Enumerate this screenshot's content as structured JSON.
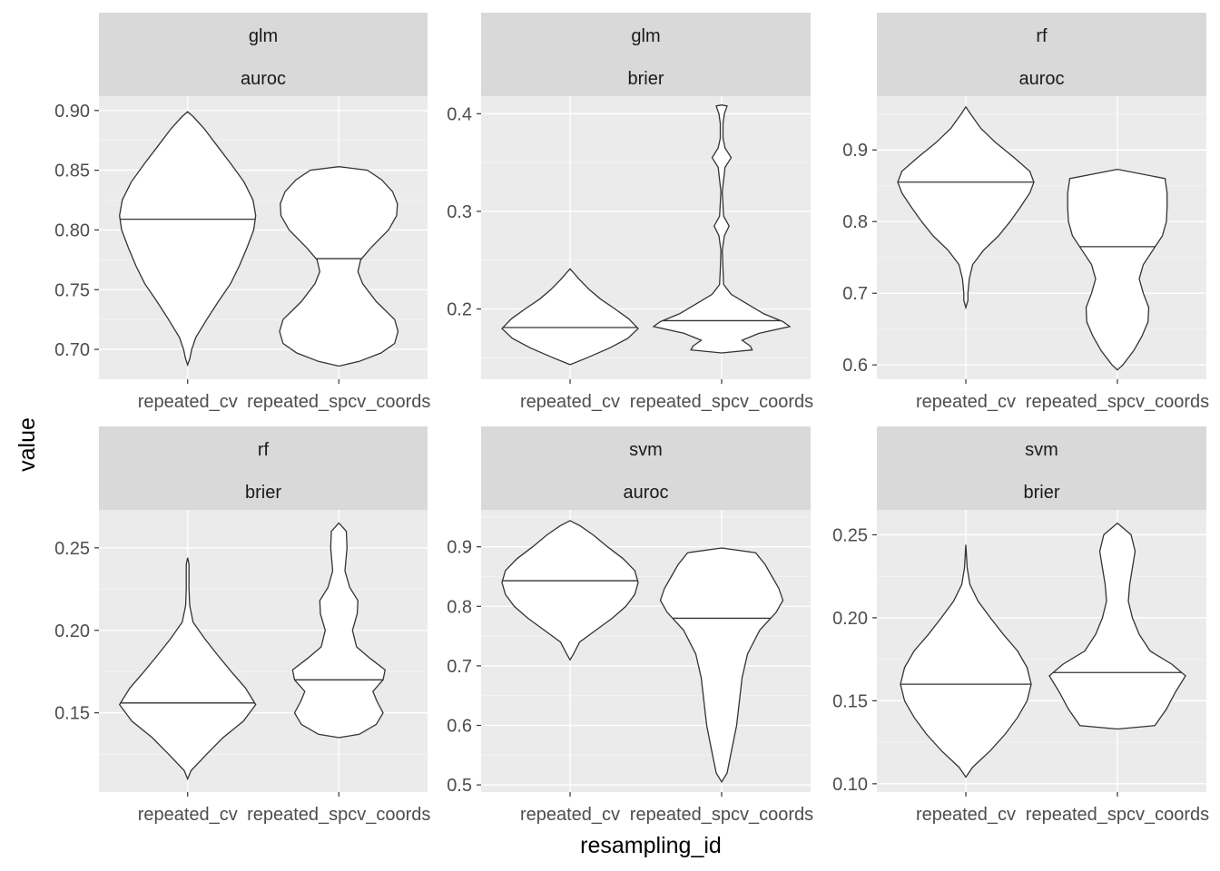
{
  "chart_data": {
    "type": "violin",
    "xlabel": "resampling_id",
    "ylabel": "value",
    "categories": [
      "repeated_cv",
      "repeated_spcv_coords"
    ],
    "grid": true,
    "facets": [
      {
        "learner": "glm",
        "measure": "auroc",
        "ylim": [
          0.675,
          0.912
        ],
        "yticks": [
          0.7,
          0.75,
          0.8,
          0.85,
          0.9
        ],
        "yticklabels": [
          "0.70",
          "0.75",
          "0.80",
          "0.85",
          "0.90"
        ],
        "violins": [
          {
            "category": "repeated_cv",
            "median": 0.809,
            "profile": [
              [
                0.687,
                0.0
              ],
              [
                0.692,
                0.03
              ],
              [
                0.7,
                0.06
              ],
              [
                0.71,
                0.12
              ],
              [
                0.725,
                0.28
              ],
              [
                0.74,
                0.45
              ],
              [
                0.755,
                0.63
              ],
              [
                0.77,
                0.76
              ],
              [
                0.785,
                0.87
              ],
              [
                0.8,
                0.97
              ],
              [
                0.812,
                1.0
              ],
              [
                0.825,
                0.96
              ],
              [
                0.84,
                0.83
              ],
              [
                0.855,
                0.64
              ],
              [
                0.87,
                0.44
              ],
              [
                0.885,
                0.24
              ],
              [
                0.895,
                0.08
              ],
              [
                0.899,
                0.0
              ]
            ]
          },
          {
            "category": "repeated_spcv_coords",
            "median": 0.776,
            "profile": [
              [
                0.686,
                0.0
              ],
              [
                0.69,
                0.3
              ],
              [
                0.697,
                0.62
              ],
              [
                0.705,
                0.82
              ],
              [
                0.715,
                0.87
              ],
              [
                0.725,
                0.82
              ],
              [
                0.74,
                0.55
              ],
              [
                0.755,
                0.35
              ],
              [
                0.765,
                0.28
              ],
              [
                0.775,
                0.32
              ],
              [
                0.785,
                0.47
              ],
              [
                0.8,
                0.73
              ],
              [
                0.812,
                0.85
              ],
              [
                0.822,
                0.86
              ],
              [
                0.832,
                0.79
              ],
              [
                0.842,
                0.63
              ],
              [
                0.85,
                0.42
              ],
              [
                0.853,
                0.0
              ]
            ]
          }
        ]
      },
      {
        "learner": "glm",
        "measure": "brier",
        "ylim": [
          0.128,
          0.418
        ],
        "yticks": [
          0.2,
          0.3,
          0.4
        ],
        "yticklabels": [
          "0.2",
          "0.3",
          "0.4"
        ],
        "violins": [
          {
            "category": "repeated_cv",
            "median": 0.181,
            "profile": [
              [
                0.143,
                0.0
              ],
              [
                0.15,
                0.25
              ],
              [
                0.16,
                0.58
              ],
              [
                0.17,
                0.85
              ],
              [
                0.18,
                1.0
              ],
              [
                0.19,
                0.86
              ],
              [
                0.2,
                0.66
              ],
              [
                0.21,
                0.45
              ],
              [
                0.22,
                0.28
              ],
              [
                0.23,
                0.14
              ],
              [
                0.238,
                0.04
              ],
              [
                0.241,
                0.0
              ]
            ]
          },
          {
            "category": "repeated_spcv_coords",
            "median": 0.188,
            "profile": [
              [
                0.155,
                0.0
              ],
              [
                0.158,
                0.45
              ],
              [
                0.162,
                0.42
              ],
              [
                0.168,
                0.3
              ],
              [
                0.175,
                0.55
              ],
              [
                0.182,
                1.0
              ],
              [
                0.187,
                0.9
              ],
              [
                0.195,
                0.62
              ],
              [
                0.205,
                0.38
              ],
              [
                0.215,
                0.14
              ],
              [
                0.225,
                0.03
              ],
              [
                0.24,
                0.02
              ],
              [
                0.26,
                0.01
              ],
              [
                0.275,
                0.04
              ],
              [
                0.285,
                0.11
              ],
              [
                0.295,
                0.03
              ],
              [
                0.32,
                0.01
              ],
              [
                0.345,
                0.05
              ],
              [
                0.355,
                0.14
              ],
              [
                0.365,
                0.05
              ],
              [
                0.375,
                0.02
              ],
              [
                0.39,
                0.02
              ],
              [
                0.4,
                0.04
              ],
              [
                0.408,
                0.08
              ],
              [
                0.409,
                0.0
              ]
            ]
          }
        ]
      },
      {
        "learner": "rf",
        "measure": "auroc",
        "ylim": [
          0.58,
          0.975
        ],
        "yticks": [
          0.6,
          0.7,
          0.8,
          0.9
        ],
        "yticklabels": [
          "0.6",
          "0.7",
          "0.8",
          "0.9"
        ],
        "violins": [
          {
            "category": "repeated_cv",
            "median": 0.855,
            "profile": [
              [
                0.68,
                0.0
              ],
              [
                0.69,
                0.03
              ],
              [
                0.7,
                0.03
              ],
              [
                0.72,
                0.05
              ],
              [
                0.74,
                0.1
              ],
              [
                0.76,
                0.26
              ],
              [
                0.78,
                0.48
              ],
              [
                0.8,
                0.65
              ],
              [
                0.82,
                0.8
              ],
              [
                0.84,
                0.94
              ],
              [
                0.855,
                1.0
              ],
              [
                0.87,
                0.94
              ],
              [
                0.89,
                0.7
              ],
              [
                0.91,
                0.44
              ],
              [
                0.93,
                0.22
              ],
              [
                0.95,
                0.07
              ],
              [
                0.96,
                0.0
              ]
            ]
          },
          {
            "category": "repeated_spcv_coords",
            "median": 0.765,
            "profile": [
              [
                0.593,
                0.0
              ],
              [
                0.6,
                0.08
              ],
              [
                0.62,
                0.24
              ],
              [
                0.64,
                0.36
              ],
              [
                0.66,
                0.45
              ],
              [
                0.68,
                0.46
              ],
              [
                0.7,
                0.38
              ],
              [
                0.72,
                0.32
              ],
              [
                0.74,
                0.38
              ],
              [
                0.76,
                0.52
              ],
              [
                0.78,
                0.66
              ],
              [
                0.8,
                0.72
              ],
              [
                0.82,
                0.73
              ],
              [
                0.84,
                0.73
              ],
              [
                0.86,
                0.7
              ],
              [
                0.873,
                0.0
              ]
            ]
          }
        ]
      },
      {
        "learner": "rf",
        "measure": "brier",
        "ylim": [
          0.102,
          0.273
        ],
        "yticks": [
          0.15,
          0.2,
          0.25
        ],
        "yticklabels": [
          "0.15",
          "0.20",
          "0.25"
        ],
        "violins": [
          {
            "category": "repeated_cv",
            "median": 0.156,
            "profile": [
              [
                0.11,
                0.0
              ],
              [
                0.115,
                0.05
              ],
              [
                0.125,
                0.28
              ],
              [
                0.135,
                0.52
              ],
              [
                0.145,
                0.82
              ],
              [
                0.155,
                1.0
              ],
              [
                0.165,
                0.85
              ],
              [
                0.175,
                0.64
              ],
              [
                0.185,
                0.44
              ],
              [
                0.195,
                0.25
              ],
              [
                0.205,
                0.08
              ],
              [
                0.215,
                0.03
              ],
              [
                0.225,
                0.02
              ],
              [
                0.24,
                0.02
              ],
              [
                0.244,
                0.0
              ]
            ]
          },
          {
            "category": "repeated_spcv_coords",
            "median": 0.17,
            "profile": [
              [
                0.135,
                0.0
              ],
              [
                0.137,
                0.3
              ],
              [
                0.143,
                0.55
              ],
              [
                0.15,
                0.65
              ],
              [
                0.157,
                0.56
              ],
              [
                0.163,
                0.5
              ],
              [
                0.17,
                0.65
              ],
              [
                0.176,
                0.68
              ],
              [
                0.183,
                0.46
              ],
              [
                0.19,
                0.26
              ],
              [
                0.2,
                0.2
              ],
              [
                0.21,
                0.27
              ],
              [
                0.218,
                0.28
              ],
              [
                0.226,
                0.16
              ],
              [
                0.236,
                0.09
              ],
              [
                0.25,
                0.12
              ],
              [
                0.26,
                0.11
              ],
              [
                0.265,
                0.0
              ]
            ]
          }
        ]
      },
      {
        "learner": "svm",
        "measure": "auroc",
        "ylim": [
          0.488,
          0.962
        ],
        "yticks": [
          0.5,
          0.6,
          0.7,
          0.8,
          0.9
        ],
        "yticklabels": [
          "0.5",
          "0.6",
          "0.7",
          "0.8",
          "0.9"
        ],
        "violins": [
          {
            "category": "repeated_cv",
            "median": 0.843,
            "profile": [
              [
                0.71,
                0.0
              ],
              [
                0.72,
                0.05
              ],
              [
                0.74,
                0.14
              ],
              [
                0.76,
                0.38
              ],
              [
                0.78,
                0.62
              ],
              [
                0.8,
                0.82
              ],
              [
                0.82,
                0.95
              ],
              [
                0.84,
                1.0
              ],
              [
                0.86,
                0.95
              ],
              [
                0.88,
                0.78
              ],
              [
                0.9,
                0.55
              ],
              [
                0.92,
                0.34
              ],
              [
                0.935,
                0.15
              ],
              [
                0.944,
                0.0
              ]
            ]
          },
          {
            "category": "repeated_spcv_coords",
            "median": 0.78,
            "profile": [
              [
                0.505,
                0.0
              ],
              [
                0.52,
                0.08
              ],
              [
                0.56,
                0.15
              ],
              [
                0.6,
                0.22
              ],
              [
                0.64,
                0.26
              ],
              [
                0.68,
                0.3
              ],
              [
                0.72,
                0.38
              ],
              [
                0.76,
                0.56
              ],
              [
                0.79,
                0.8
              ],
              [
                0.81,
                0.9
              ],
              [
                0.83,
                0.84
              ],
              [
                0.85,
                0.74
              ],
              [
                0.87,
                0.64
              ],
              [
                0.89,
                0.5
              ],
              [
                0.898,
                0.0
              ]
            ]
          }
        ]
      },
      {
        "learner": "svm",
        "measure": "brier",
        "ylim": [
          0.095,
          0.265
        ],
        "yticks": [
          0.1,
          0.15,
          0.2,
          0.25
        ],
        "yticklabels": [
          "0.10",
          "0.15",
          "0.20",
          "0.25"
        ],
        "violins": [
          {
            "category": "repeated_cv",
            "median": 0.16,
            "profile": [
              [
                0.104,
                0.0
              ],
              [
                0.11,
                0.1
              ],
              [
                0.12,
                0.36
              ],
              [
                0.13,
                0.58
              ],
              [
                0.14,
                0.76
              ],
              [
                0.15,
                0.9
              ],
              [
                0.16,
                0.96
              ],
              [
                0.17,
                0.9
              ],
              [
                0.18,
                0.76
              ],
              [
                0.19,
                0.55
              ],
              [
                0.2,
                0.36
              ],
              [
                0.21,
                0.18
              ],
              [
                0.22,
                0.06
              ],
              [
                0.23,
                0.02
              ],
              [
                0.244,
                0.0
              ]
            ]
          },
          {
            "category": "repeated_spcv_coords",
            "median": 0.167,
            "profile": [
              [
                0.133,
                0.0
              ],
              [
                0.135,
                0.55
              ],
              [
                0.145,
                0.72
              ],
              [
                0.155,
                0.85
              ],
              [
                0.165,
                1.0
              ],
              [
                0.172,
                0.8
              ],
              [
                0.18,
                0.48
              ],
              [
                0.19,
                0.32
              ],
              [
                0.2,
                0.22
              ],
              [
                0.21,
                0.16
              ],
              [
                0.22,
                0.18
              ],
              [
                0.23,
                0.22
              ],
              [
                0.24,
                0.26
              ],
              [
                0.25,
                0.2
              ],
              [
                0.257,
                0.0
              ]
            ]
          }
        ]
      }
    ]
  }
}
